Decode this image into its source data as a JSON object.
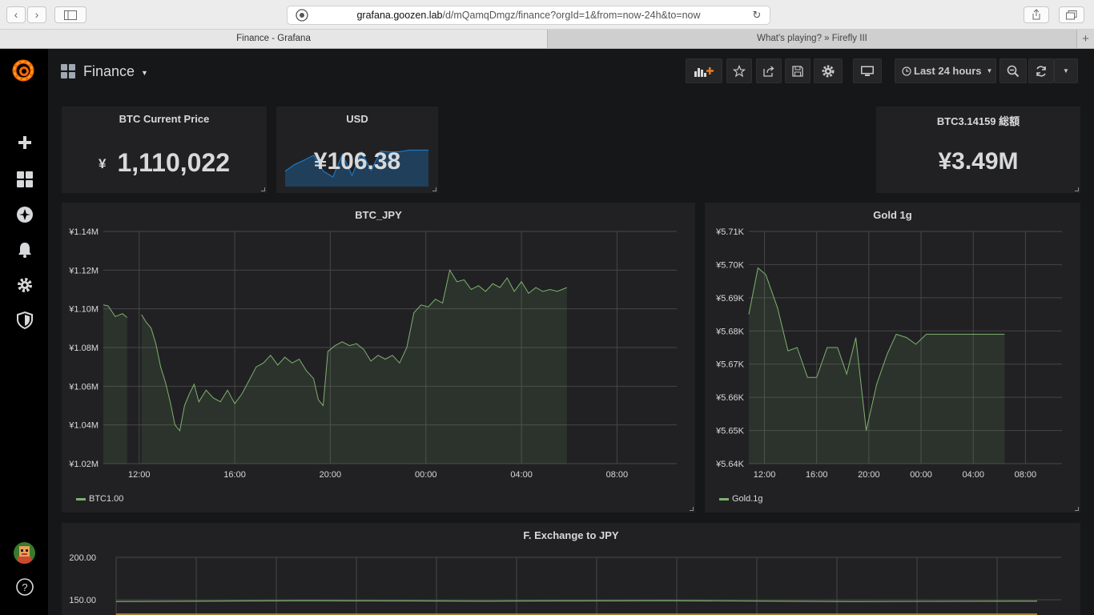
{
  "browser": {
    "url_host": "grafana.goozen.lab",
    "url_path": "/d/mQamqDmgz/finance?orgId=1&from=now-24h&to=now",
    "tabs": [
      {
        "title": "Finance - Grafana",
        "active": true
      },
      {
        "title": "What's playing? » Firefly III",
        "active": false
      }
    ]
  },
  "sidemenu": {
    "items": [
      "grafana-logo-icon",
      "plus-icon",
      "dashboards-icon",
      "explore-icon",
      "bell-icon",
      "gear-icon",
      "shield-icon"
    ],
    "bottom": [
      "avatar",
      "help-icon"
    ]
  },
  "dashboard": {
    "title": "Finance",
    "time_range": "Last 24 hours",
    "accent_color": "#eb7b18"
  },
  "panels": {
    "btc_price": {
      "title": "BTC Current Price",
      "prefix": "¥",
      "value": "1,110,022"
    },
    "usd": {
      "title": "USD",
      "value": "¥106.38",
      "sparkline": [
        0.42,
        0.6,
        0.72,
        0.85,
        0.42,
        0.26,
        0.88,
        0.3,
        0.94,
        0.44,
        0.96,
        0.94,
        0.95,
        0.99,
        0.99,
        0.99
      ],
      "sparkline_color": "#1f78c1"
    },
    "btc_total": {
      "title": "BTC3.14159 総額",
      "value": "¥3.49M"
    }
  },
  "chart_data": [
    {
      "type": "area",
      "title": "BTC_JPY",
      "xlabel": "",
      "ylabel": "",
      "x_ticks": [
        "12:00",
        "16:00",
        "20:00",
        "00:00",
        "04:00",
        "08:00"
      ],
      "y_ticks": [
        "¥1.14M",
        "¥1.12M",
        "¥1.10M",
        "¥1.08M",
        "¥1.06M",
        "¥1.04M",
        "¥1.02M"
      ],
      "ylim": [
        1020000,
        1140000
      ],
      "xlim_hours": [
        0,
        24
      ],
      "grid": true,
      "series": [
        {
          "name": "BTC1.00",
          "color": "#7eb26d",
          "x": [
            0,
            0.2,
            0.5,
            0.8,
            1.0,
            1.2,
            1.4,
            1.6,
            1.8,
            2.0,
            2.2,
            2.4,
            2.6,
            2.8,
            3.0,
            3.2,
            3.4,
            3.6,
            3.8,
            4.0,
            4.3,
            4.6,
            4.9,
            5.2,
            5.5,
            5.8,
            6.1,
            6.4,
            6.7,
            7.0,
            7.3,
            7.6,
            7.9,
            8.2,
            8.5,
            8.8,
            9.0,
            9.2,
            9.4,
            9.7,
            10.0,
            10.3,
            10.6,
            10.9,
            11.2,
            11.5,
            11.8,
            12.1,
            12.4,
            12.7,
            13.0,
            13.3,
            13.6,
            13.9,
            14.2,
            14.5,
            14.8,
            15.1,
            15.4,
            15.7,
            16.0,
            16.3,
            16.6,
            16.9,
            17.2,
            17.5,
            17.8,
            18.1,
            18.4,
            18.7,
            19.0,
            19.4
          ],
          "values": [
            1102000,
            1101500,
            1096000,
            1097500,
            1095500,
            null,
            null,
            1097000,
            1093000,
            1090000,
            1082000,
            1070000,
            1062000,
            1052000,
            1040000,
            1037000,
            1050000,
            1056000,
            1061000,
            1052000,
            1058000,
            1054000,
            1052000,
            1058000,
            1051000,
            1056000,
            1063000,
            1070000,
            1072000,
            1076000,
            1071000,
            1075000,
            1072000,
            1074000,
            1068000,
            1064000,
            1053000,
            1050000,
            1078000,
            1081000,
            1083000,
            1081000,
            1082000,
            1079000,
            1073000,
            1076000,
            1074000,
            1076000,
            1072000,
            1080000,
            1098000,
            1102000,
            1101000,
            1105000,
            1103000,
            1120000,
            1114000,
            1115000,
            1110000,
            1112000,
            1109000,
            1113000,
            1111000,
            1116000,
            1109000,
            1114000,
            1108000,
            1111000,
            1109000,
            1110000,
            1109000,
            1111000
          ]
        }
      ]
    },
    {
      "type": "area",
      "title": "Gold 1g",
      "xlabel": "",
      "ylabel": "",
      "x_ticks": [
        "12:00",
        "16:00",
        "20:00",
        "00:00",
        "04:00",
        "08:00"
      ],
      "y_ticks": [
        "¥5.71K",
        "¥5.70K",
        "¥5.69K",
        "¥5.68K",
        "¥5.67K",
        "¥5.66K",
        "¥5.65K",
        "¥5.64K"
      ],
      "ylim": [
        5640,
        5710
      ],
      "xlim_hours": [
        0,
        24
      ],
      "grid": true,
      "series": [
        {
          "name": "Gold.1g",
          "color": "#7eb26d",
          "x": [
            0,
            0.7,
            1.3,
            2.2,
            3.0,
            3.7,
            4.5,
            5.2,
            6.0,
            6.8,
            7.5,
            8.2,
            9.0,
            9.8,
            10.6,
            11.3,
            12.1,
            12.8,
            13.6,
            14.3,
            15.1,
            15.8,
            16.6,
            17.3,
            18.1,
            18.8,
            19.6
          ],
          "values": [
            5685,
            5699,
            5697,
            5687,
            5674,
            5675,
            5666,
            5666,
            5675,
            5675,
            5667,
            5678,
            5650,
            5664,
            5673,
            5679,
            5678,
            5676,
            5679,
            5679,
            5679,
            5679,
            5679,
            5679,
            5679,
            5679,
            5679
          ]
        }
      ]
    },
    {
      "type": "line",
      "title": "F. Exchange to JPY",
      "xlabel": "",
      "ylabel": "",
      "y_ticks": [
        "200.00",
        "150.00"
      ],
      "ylim": [
        100,
        200
      ],
      "grid": true,
      "series": [
        {
          "name": "",
          "color": "#7eb26d",
          "values": [
            148,
            149,
            148.5,
            149,
            148,
            148.5
          ]
        },
        {
          "name": "",
          "color": "#eab839",
          "values": [
            133,
            133,
            133,
            133,
            133,
            133
          ]
        }
      ]
    }
  ]
}
